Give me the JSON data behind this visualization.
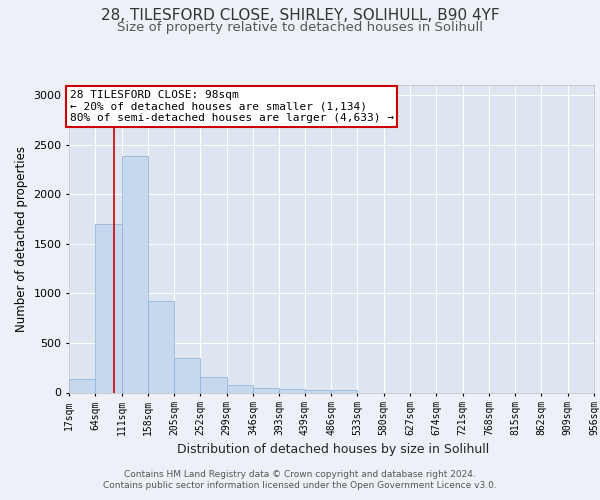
{
  "title1": "28, TILESFORD CLOSE, SHIRLEY, SOLIHULL, B90 4YF",
  "title2": "Size of property relative to detached houses in Solihull",
  "xlabel": "Distribution of detached houses by size in Solihull",
  "ylabel": "Number of detached properties",
  "footer1": "Contains HM Land Registry data © Crown copyright and database right 2024.",
  "footer2": "Contains public sector information licensed under the Open Government Licence v3.0.",
  "bin_edges": [
    17,
    64,
    111,
    158,
    205,
    252,
    299,
    346,
    393,
    439,
    486,
    533,
    580,
    627,
    674,
    721,
    768,
    815,
    862,
    909,
    956
  ],
  "bar_values": [
    140,
    1700,
    2380,
    920,
    350,
    155,
    80,
    50,
    35,
    30,
    30,
    0,
    0,
    0,
    0,
    0,
    0,
    0,
    0,
    0
  ],
  "bar_color": "#c5d8ee",
  "bar_edge_color": "#8ab0d4",
  "vline_x": 98,
  "vline_color": "#cc0000",
  "annotation_text": "28 TILESFORD CLOSE: 98sqm\n← 20% of detached houses are smaller (1,134)\n80% of semi-detached houses are larger (4,633) →",
  "annotation_box_color": "#ffffff",
  "annotation_box_edge_color": "#cc0000",
  "ylim": [
    0,
    3100
  ],
  "background_color": "#edf1f7",
  "plot_bg_color": "#dde6f0",
  "grid_color": "#ffffff",
  "title1_fontsize": 11,
  "title2_fontsize": 9.5,
  "tick_label_fontsize": 7,
  "ylabel_fontsize": 8.5,
  "xlabel_fontsize": 9,
  "annotation_fontsize": 8,
  "footer_fontsize": 6.5
}
